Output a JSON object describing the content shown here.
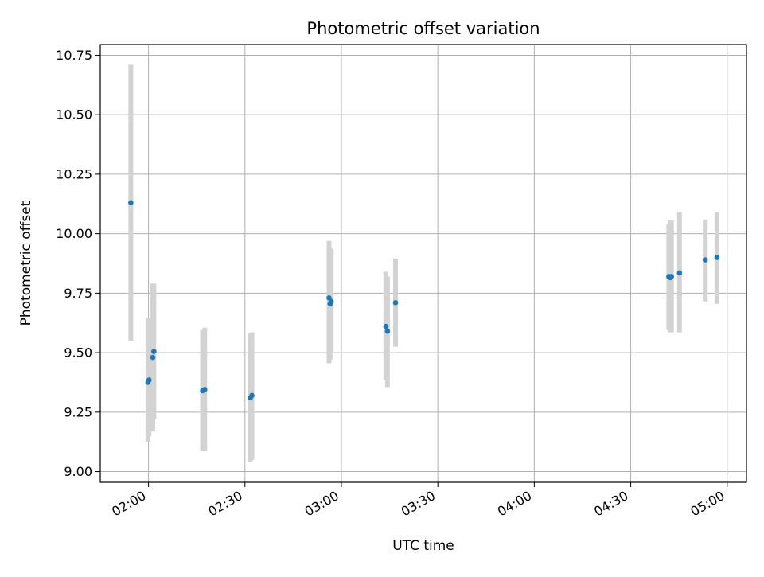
{
  "chart_data": {
    "type": "scatter",
    "title": "Photometric offset variation",
    "xlabel": "UTC time",
    "ylabel": "Photometric offset",
    "x_axis_type": "time",
    "xlim": [
      "01:45",
      "05:06"
    ],
    "ylim": [
      8.955,
      10.795
    ],
    "xticks": [
      "02:00",
      "02:30",
      "03:00",
      "03:30",
      "04:00",
      "04:30",
      "05:00"
    ],
    "yticks": [
      "9.00",
      "9.25",
      "9.50",
      "9.75",
      "10.00",
      "10.25",
      "10.50",
      "10.75"
    ],
    "grid": true,
    "legend": "none",
    "colors": {
      "points": "#1f77b4",
      "error_bars": "#d3d3d3",
      "grid": "#b0b0b0"
    },
    "points": [
      {
        "x": "01:54:30",
        "y": 10.13,
        "ylow": 9.55,
        "yhigh": 10.71
      },
      {
        "x": "01:59:50",
        "y": 9.375,
        "ylow": 9.125,
        "yhigh": 9.645
      },
      {
        "x": "02:00:10",
        "y": 9.385,
        "ylow": 9.15,
        "yhigh": 9.64
      },
      {
        "x": "02:01:20",
        "y": 9.48,
        "ylow": 9.17,
        "yhigh": 9.79
      },
      {
        "x": "02:01:40",
        "y": 9.505,
        "ylow": 9.22,
        "yhigh": 9.79
      },
      {
        "x": "02:16:50",
        "y": 9.34,
        "ylow": 9.085,
        "yhigh": 9.595
      },
      {
        "x": "02:17:30",
        "y": 9.345,
        "ylow": 9.085,
        "yhigh": 9.605
      },
      {
        "x": "02:31:40",
        "y": 9.31,
        "ylow": 9.04,
        "yhigh": 9.58
      },
      {
        "x": "02:32:10",
        "y": 9.32,
        "ylow": 9.05,
        "yhigh": 9.585
      },
      {
        "x": "02:56:10",
        "y": 9.73,
        "ylow": 9.455,
        "yhigh": 9.97
      },
      {
        "x": "02:56:30",
        "y": 9.705,
        "ylow": 9.47,
        "yhigh": 9.94
      },
      {
        "x": "02:56:50",
        "y": 9.715,
        "ylow": 9.5,
        "yhigh": 9.935
      },
      {
        "x": "03:13:50",
        "y": 9.61,
        "ylow": 9.385,
        "yhigh": 9.84
      },
      {
        "x": "03:14:20",
        "y": 9.59,
        "ylow": 9.355,
        "yhigh": 9.82
      },
      {
        "x": "03:16:50",
        "y": 9.71,
        "ylow": 9.525,
        "yhigh": 9.895
      },
      {
        "x": "04:41:50",
        "y": 9.82,
        "ylow": 9.595,
        "yhigh": 10.04
      },
      {
        "x": "04:42:20",
        "y": 9.815,
        "ylow": 9.585,
        "yhigh": 10.055
      },
      {
        "x": "04:42:40",
        "y": 9.82,
        "ylow": 9.585,
        "yhigh": 10.055
      },
      {
        "x": "04:45:10",
        "y": 9.835,
        "ylow": 9.585,
        "yhigh": 10.09
      },
      {
        "x": "04:53:10",
        "y": 9.89,
        "ylow": 9.715,
        "yhigh": 10.06
      },
      {
        "x": "04:56:50",
        "y": 9.9,
        "ylow": 9.705,
        "yhigh": 10.09
      }
    ]
  }
}
